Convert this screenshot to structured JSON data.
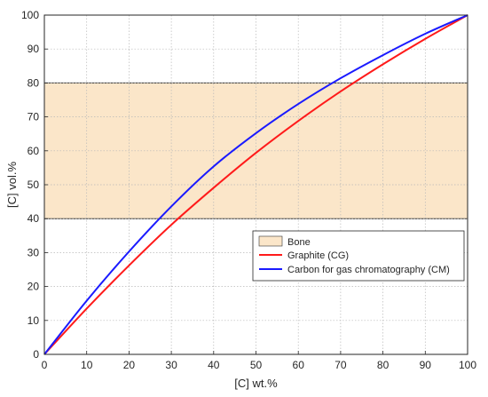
{
  "chart_data": {
    "type": "line",
    "xlabel": "[C] wt.%",
    "ylabel": "[C] vol.%",
    "xlim": [
      0,
      100
    ],
    "ylim": [
      0,
      100
    ],
    "xticks": [
      "0",
      "10",
      "20",
      "30",
      "40",
      "50",
      "60",
      "70",
      "80",
      "90",
      "100"
    ],
    "yticks": [
      "0",
      "10",
      "20",
      "30",
      "40",
      "50",
      "60",
      "70",
      "80",
      "90",
      "100"
    ],
    "grid": true,
    "legend_position": "lower-right",
    "band": {
      "name": "Bone",
      "y_range": [
        40,
        80
      ],
      "color": "#fbe6c9"
    },
    "series": [
      {
        "name": "Graphite (CG)",
        "color": "#ff1a1a",
        "x": [
          0,
          10,
          20,
          30,
          40,
          50,
          60,
          70,
          80,
          90,
          100
        ],
        "y": [
          0,
          13.5,
          26.2,
          38.2,
          49.1,
          59.4,
          68.8,
          77.5,
          85.5,
          93.0,
          100
        ]
      },
      {
        "name": "Carbon for gas chromatography (CM)",
        "color": "#1a1aff",
        "x": [
          0,
          10,
          20,
          30,
          40,
          50,
          60,
          70,
          80,
          90,
          100
        ],
        "y": [
          0,
          15.8,
          30.3,
          43.6,
          55.4,
          65.2,
          73.8,
          81.4,
          88.2,
          94.5,
          100
        ]
      }
    ]
  }
}
